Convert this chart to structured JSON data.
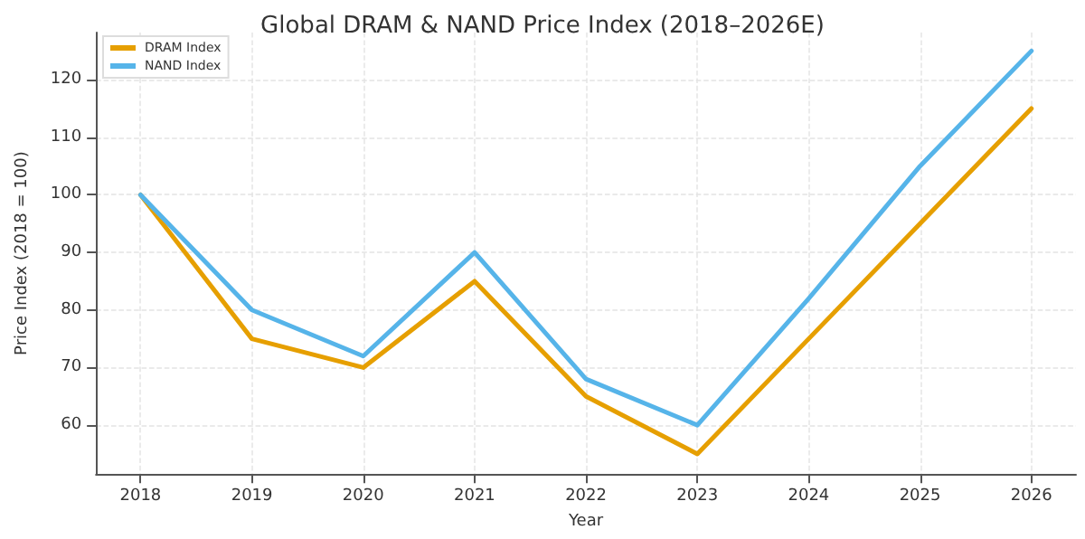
{
  "chart_data": {
    "type": "line",
    "title": "Global DRAM & NAND Price Index (2018–2026E)",
    "xlabel": "Year",
    "ylabel": "Price Index (2018 = 100)",
    "x": [
      2018,
      2019,
      2020,
      2021,
      2022,
      2023,
      2024,
      2025,
      2026
    ],
    "series": [
      {
        "name": "DRAM Index",
        "color": "#e69f00",
        "values": [
          100,
          75,
          70,
          85,
          65,
          55,
          75,
          95,
          115
        ]
      },
      {
        "name": "NAND Index",
        "color": "#56b4e9",
        "values": [
          100,
          80,
          72,
          90,
          68,
          60,
          82,
          105,
          125
        ]
      }
    ],
    "xlim": [
      2017.6,
      2026.4
    ],
    "xticks": [
      2018,
      2019,
      2020,
      2021,
      2022,
      2023,
      2024,
      2025,
      2026
    ],
    "ylim": [
      51.5,
      128.2
    ],
    "yticks": [
      60,
      70,
      80,
      90,
      100,
      110,
      120
    ],
    "grid": true,
    "legend": "top left",
    "marker": "none",
    "line_style": "solid"
  }
}
